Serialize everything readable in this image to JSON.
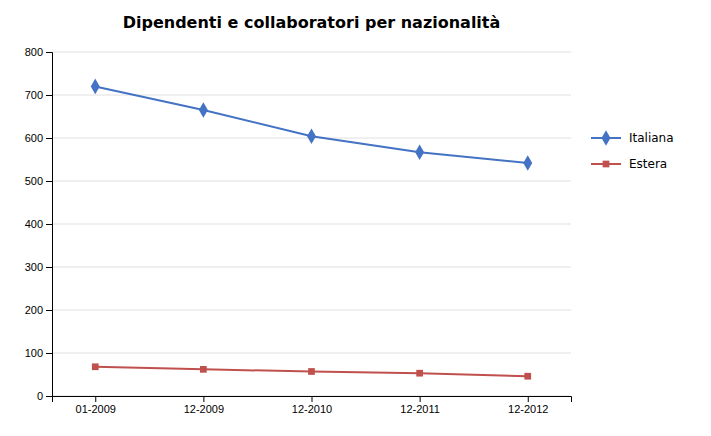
{
  "chart_data": {
    "type": "line",
    "title": "Dipendenti e collaboratori per nazionalità",
    "categories": [
      "01-2009",
      "12-2009",
      "12-2010",
      "12-2011",
      "12-2012"
    ],
    "series": [
      {
        "name": "Italiana",
        "color": "#4472C4",
        "marker": "diamond",
        "values": [
          720,
          665,
          604,
          567,
          542
        ]
      },
      {
        "name": "Estera",
        "color": "#C0504D",
        "marker": "square",
        "values": [
          68,
          62,
          57,
          53,
          46
        ]
      }
    ],
    "ylim": [
      0,
      800
    ],
    "yticks": [
      0,
      100,
      200,
      300,
      400,
      500,
      600,
      700,
      800
    ],
    "grid": true,
    "legend": "right"
  }
}
